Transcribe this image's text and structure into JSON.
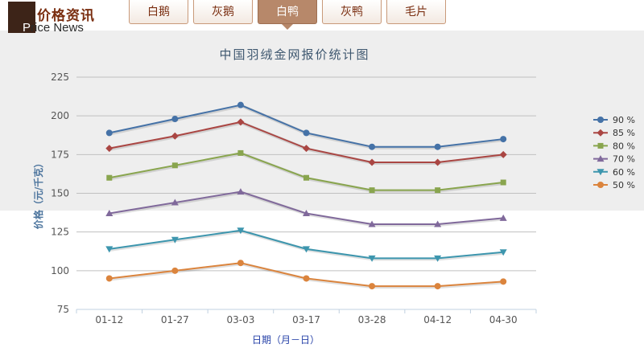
{
  "header": {
    "title": "价格资讯",
    "subtitle_first": "P",
    "subtitle_rest": "rice News"
  },
  "tabs": [
    {
      "label": "白鹅",
      "active": false
    },
    {
      "label": "灰鹅",
      "active": false
    },
    {
      "label": "白鸭",
      "active": true
    },
    {
      "label": "灰鸭",
      "active": false
    },
    {
      "label": "毛片",
      "active": false
    }
  ],
  "chart_data": {
    "type": "line",
    "title": "中国羽绒金网报价统计图",
    "xlabel": "日期（月－日）",
    "ylabel": "价格（元/千克）",
    "categories": [
      "01-12",
      "01-27",
      "03-03",
      "03-17",
      "03-28",
      "04-12",
      "04-30"
    ],
    "ylim": [
      75,
      225
    ],
    "yticks": [
      75,
      100,
      125,
      150,
      175,
      200,
      225
    ],
    "grid": true,
    "legend_position": "right",
    "series": [
      {
        "name": "90 %",
        "color": "#4572a7",
        "marker": "circle",
        "values": [
          189,
          198,
          207,
          189,
          180,
          180,
          185
        ]
      },
      {
        "name": "85 %",
        "color": "#aa4643",
        "marker": "diamond",
        "values": [
          179,
          187,
          196,
          179,
          170,
          170,
          175
        ]
      },
      {
        "name": "80 %",
        "color": "#89a54e",
        "marker": "square",
        "values": [
          160,
          168,
          176,
          160,
          152,
          152,
          157
        ]
      },
      {
        "name": "70 %",
        "color": "#80699b",
        "marker": "triangle",
        "values": [
          137,
          144,
          151,
          137,
          130,
          130,
          134
        ]
      },
      {
        "name": "60 %",
        "color": "#3d96ae",
        "marker": "triangle-down",
        "values": [
          114,
          120,
          126,
          114,
          108,
          108,
          112
        ]
      },
      {
        "name": "50 %",
        "color": "#db843d",
        "marker": "circle",
        "values": [
          95,
          100,
          105,
          95,
          90,
          90,
          93
        ]
      }
    ]
  }
}
